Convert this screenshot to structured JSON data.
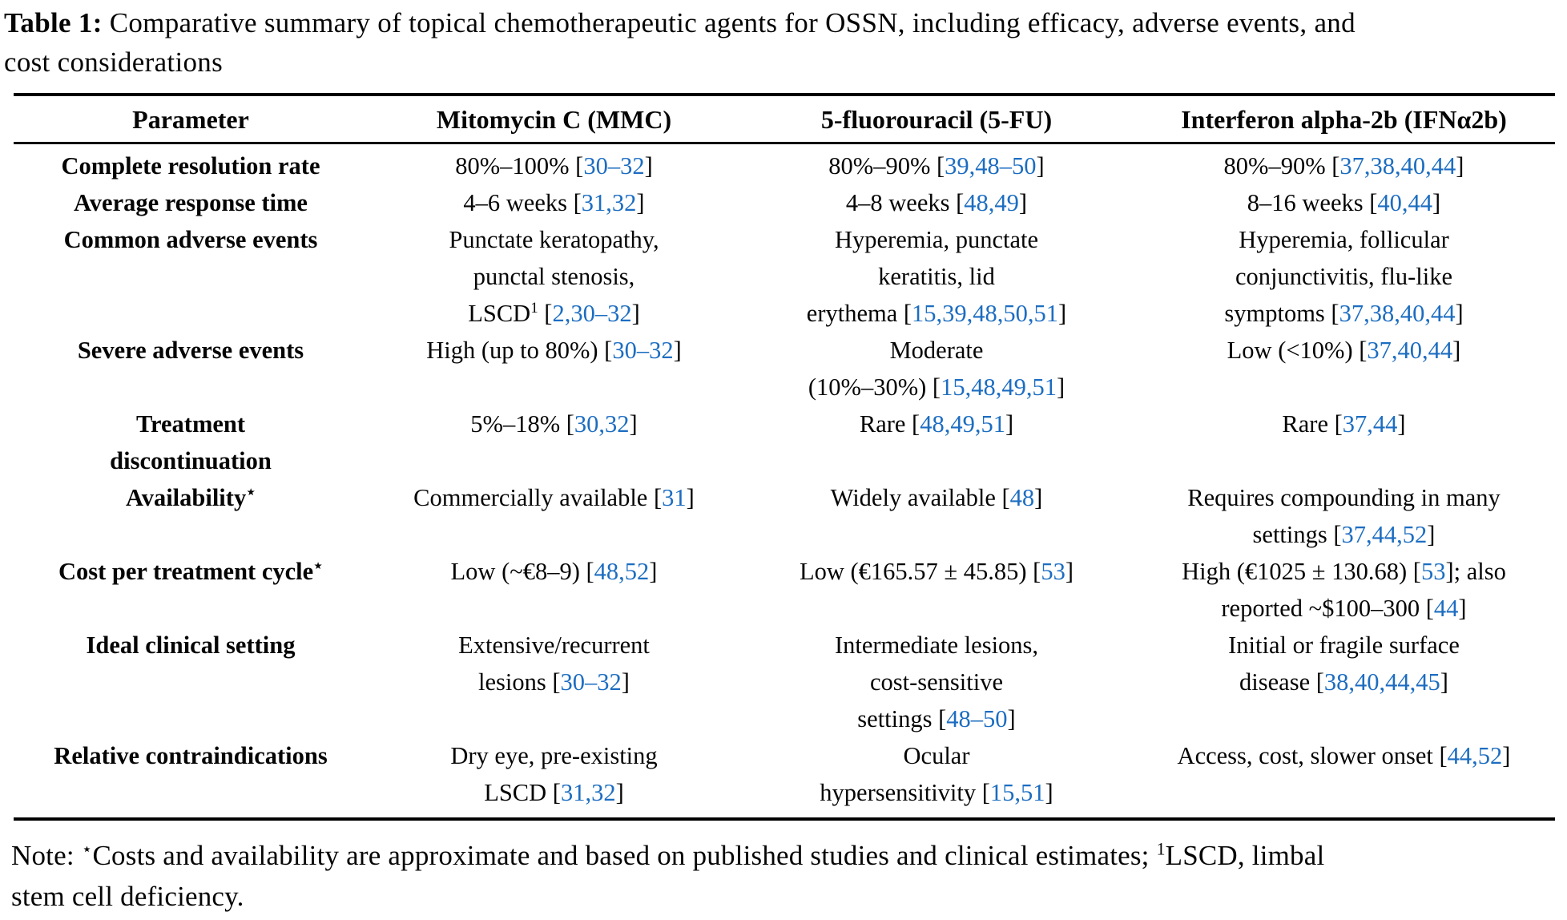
{
  "caption": {
    "prefix": "Table 1:",
    "line1_rest": "Comparative summary of topical chemotherapeutic agents for OSSN, including efficacy, adverse events, and",
    "line2": "cost considerations"
  },
  "colors": {
    "citation_blue": "#1c6dc1",
    "text": "#050505",
    "background": "#ffffff",
    "rule": "#000000"
  },
  "table": {
    "column_headers": [
      "Parameter",
      "Mitomycin C (MMC)",
      "5-fluorouracil (5-FU)",
      "Interferon alpha-2b (IFNα2b)"
    ],
    "rows": [
      {
        "parameter": [
          "Complete resolution rate"
        ],
        "cells": [
          [
            "80%–100% [30–32]"
          ],
          [
            "80%–90% [39,48–50]"
          ],
          [
            "80%–90% [37,38,40,44]"
          ]
        ]
      },
      {
        "parameter": [
          "Average response time"
        ],
        "cells": [
          [
            "4–6 weeks [31,32]"
          ],
          [
            "4–8 weeks [48,49]"
          ],
          [
            "8–16 weeks [40,44]"
          ]
        ]
      },
      {
        "parameter": [
          "Common adverse events"
        ],
        "cells": [
          [
            "Punctate keratopathy,",
            "punctal stenosis,",
            "LSCD^1 [2,30–32]"
          ],
          [
            "Hyperemia, punctate",
            "keratitis, lid",
            "erythema [15,39,48,50,51]"
          ],
          [
            "Hyperemia, follicular",
            "conjunctivitis, flu-like",
            "symptoms [37,38,40,44]"
          ]
        ]
      },
      {
        "parameter": [
          "Severe adverse events"
        ],
        "cells": [
          [
            "High (up to 80%) [30–32]"
          ],
          [
            "Moderate",
            "(10%–30%) [15,48,49,51]"
          ],
          [
            "Low (<10%) [37,40,44]"
          ]
        ]
      },
      {
        "parameter": [
          "Treatment",
          "discontinuation"
        ],
        "cells": [
          [
            "5%–18% [30,32]"
          ],
          [
            "Rare [48,49,51]"
          ],
          [
            "Rare [37,44]"
          ]
        ]
      },
      {
        "parameter": [
          "Availability^⋆"
        ],
        "cells": [
          [
            "Commercially available [31]"
          ],
          [
            "Widely available [48]"
          ],
          [
            "Requires compounding in many",
            "settings [37,44,52]"
          ]
        ]
      },
      {
        "parameter": [
          "Cost per treatment cycle^⋆"
        ],
        "cells": [
          [
            "Low (~€8–9) [48,52]"
          ],
          [
            "Low (€165.57 ± 45.85) [53]"
          ],
          [
            "High (€1025 ± 130.68) [53]; also",
            "reported ~$100–300 [44]"
          ]
        ]
      },
      {
        "parameter": [
          "Ideal clinical setting"
        ],
        "cells": [
          [
            "Extensive/recurrent",
            "lesions [30–32]"
          ],
          [
            "Intermediate lesions,",
            "cost-sensitive",
            "settings [48–50]"
          ],
          [
            "Initial or fragile surface",
            "disease [38,40,44,45]"
          ]
        ]
      },
      {
        "parameter": [
          "Relative contraindications"
        ],
        "cells": [
          [
            "Dry eye, pre-existing",
            "LSCD [31,32]"
          ],
          [
            "Ocular",
            "hypersensitivity [15,51]"
          ],
          [
            "Access, cost, slower onset [44,52]"
          ]
        ]
      }
    ]
  },
  "note": {
    "line1": "Note: ^⋆Costs and availability are approximate and based on published studies and clinical estimates; ^1LSCD, limbal",
    "line2": "stem cell deficiency."
  }
}
